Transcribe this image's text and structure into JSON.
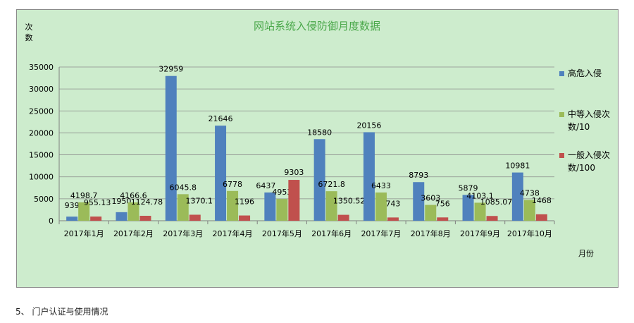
{
  "chart_data": {
    "type": "bar",
    "title": "网站系统入侵防御月度数据",
    "ylabel": "次数",
    "xlabel": "月份",
    "ylim": [
      0,
      35000
    ],
    "yticks": [
      "0",
      "5000",
      "10000",
      "15000",
      "20000",
      "25000",
      "30000",
      "35000"
    ],
    "grid": true,
    "legend_position": "right",
    "categories": [
      "2017年1月",
      "2017年2月",
      "2017年3月",
      "2017年4月",
      "2017年5月",
      "2017年6月",
      "2017年7月",
      "2017年8月",
      "2017年9月",
      "2017年10月"
    ],
    "series": [
      {
        "name": "高危入侵",
        "color": "#4f81bd",
        "values": [
          939,
          1950,
          32959,
          21646,
          6437,
          18580,
          20156,
          8793,
          5879,
          10981
        ],
        "labels": [
          "939",
          "1950",
          "32959",
          "21646",
          "6437",
          "18580",
          "20156",
          "8793",
          "5879",
          "10981"
        ]
      },
      {
        "name": "中等入侵次数/10",
        "color": "#9bbb59",
        "values": [
          4198.7,
          4166.6,
          6045.8,
          6778,
          4953,
          6721.8,
          6433,
          3603,
          4103.1,
          4738
        ],
        "labels": [
          "4198.7",
          "4166.6",
          "6045.8",
          "6778",
          "4953",
          "6721.8",
          "6433",
          "3603",
          "4103.1",
          "4738"
        ]
      },
      {
        "name": "一般入侵次数/100",
        "color": "#c0504d",
        "values": [
          955.13,
          1124.78,
          1370.1,
          1196,
          9303,
          1350.52,
          743,
          756,
          1085.07,
          1468
        ],
        "labels": [
          "955.13",
          "1124.78",
          "1370.1",
          "1196",
          "9303",
          "1350.52",
          "743",
          "756",
          "1085.07",
          "1468"
        ]
      }
    ]
  },
  "caption": "5、 门户认证与使用情况"
}
